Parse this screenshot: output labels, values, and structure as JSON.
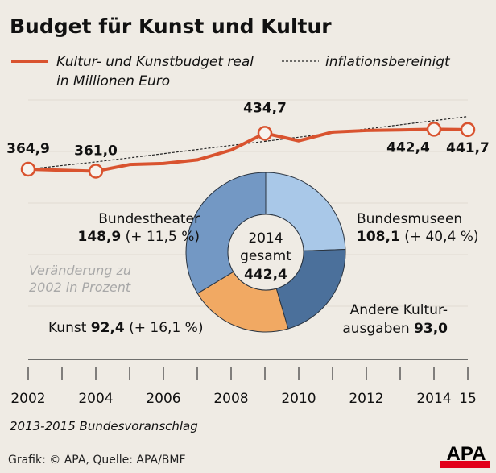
{
  "chart_data": [
    {
      "type": "line",
      "title": "Budget für Kunst und Kultur",
      "legend": {
        "placement": "top",
        "entries": [
          {
            "line1": "Kultur- und Kunstbudget real",
            "line2": "in Millionen Euro",
            "color": "#d9532f",
            "style": "solid"
          },
          {
            "line1": "inflationsbereinigt",
            "color": "#222222",
            "style": "dotted"
          }
        ]
      },
      "x": [
        2002,
        2003,
        2004,
        2005,
        2006,
        2007,
        2008,
        2009,
        2010,
        2011,
        2012,
        2013,
        2014,
        2015
      ],
      "x_tick_labels": [
        "2002",
        "2004",
        "2006",
        "2008",
        "2010",
        "2012",
        "2014",
        "15"
      ],
      "series": [
        {
          "values": [
            364.9,
            363,
            361.0,
            374,
            376,
            383,
            402,
            434.7,
            420,
            437,
            440,
            441,
            442.4,
            441.7
          ],
          "color": "#d9532f"
        },
        {
          "values": [
            364.9,
            372,
            379,
            387,
            395,
            403,
            411,
            419,
            427,
            435,
            443,
            451,
            459,
            467
          ],
          "color": "#222222",
          "dotted": true
        }
      ],
      "data_labels": [
        {
          "x": 2002,
          "text": "364,9"
        },
        {
          "x": 2004,
          "text": "361,0"
        },
        {
          "x": 2009,
          "text": "434,7"
        },
        {
          "x": 2014,
          "text": "442,4"
        },
        {
          "x": 2015,
          "text": "441,7"
        }
      ],
      "ylim": [
        330,
        480
      ],
      "grid": true,
      "footnote": "2013-2015 Bundesvoranschlag"
    },
    {
      "type": "pie",
      "donut": true,
      "center_label": {
        "line1": "2014",
        "line2": "gesamt",
        "line3": "442,4"
      },
      "slices": [
        {
          "name": "Bundesmuseen",
          "value": 108.1,
          "value_text": "108,1",
          "change_text": "(+ 40,4 %)",
          "color": "#a9c8e8"
        },
        {
          "name": "Andere Kultur-",
          "name2": "ausgaben",
          "value": 93.0,
          "value_text": "93,0",
          "color": "#4b709b"
        },
        {
          "name": "Kunst",
          "value": 92.4,
          "value_text": "92,4",
          "change_text": "(+ 16,1 %)",
          "color": "#f1a963"
        },
        {
          "name": "Bundestheater",
          "value": 148.9,
          "value_text": "148,9",
          "change_text": "(+ 11,5 %)",
          "color": "#7398c4"
        }
      ],
      "note": {
        "line1": "Veränderung zu",
        "line2": "2002 in Prozent"
      }
    }
  ],
  "footer": {
    "credit": "Grafik: © APA, Quelle: APA/BMF",
    "logo": "APA"
  }
}
